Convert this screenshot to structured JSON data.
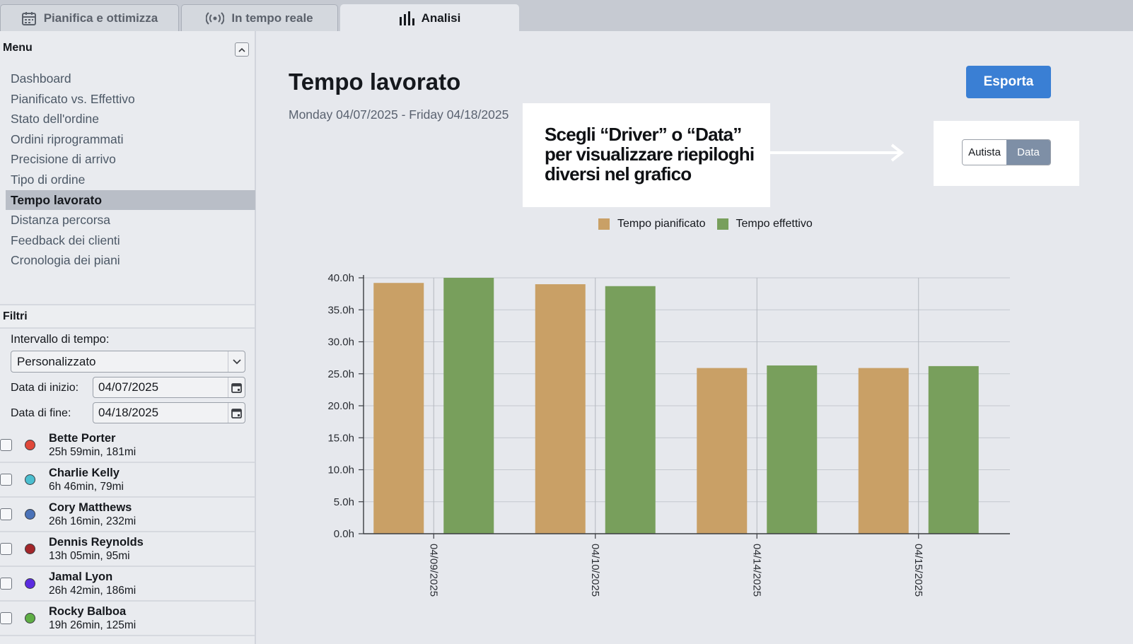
{
  "tabs": [
    {
      "label": "Pianifica e ottimizza",
      "icon": "calendar-icon",
      "active": false
    },
    {
      "label": "In tempo reale",
      "icon": "broadcast-icon",
      "active": false
    },
    {
      "label": "Analisi",
      "icon": "bar-chart-icon",
      "active": true
    }
  ],
  "sidebar": {
    "menu_title": "Menu",
    "items": [
      {
        "label": "Dashboard"
      },
      {
        "label": "Pianificato vs. Effettivo"
      },
      {
        "label": "Stato dell'ordine"
      },
      {
        "label": "Ordini riprogrammati"
      },
      {
        "label": "Precisione di arrivo"
      },
      {
        "label": "Tipo di ordine"
      },
      {
        "label": "Tempo lavorato",
        "active": true
      },
      {
        "label": "Distanza percorsa"
      },
      {
        "label": "Feedback dei clienti"
      },
      {
        "label": "Cronologia dei piani"
      }
    ],
    "filters": {
      "title": "Filtri",
      "range_label": "Intervallo di tempo:",
      "range_value": "Personalizzato",
      "start_label": "Data di inizio:",
      "start_value": "04/07/2025",
      "end_label": "Data di fine:",
      "end_value": "04/18/2025"
    },
    "drivers": [
      {
        "name": "Bette Porter",
        "stats": "25h 59min, 181mi",
        "color": "#e0483a"
      },
      {
        "name": "Charlie Kelly",
        "stats": "6h 46min, 79mi",
        "color": "#4bbecf"
      },
      {
        "name": "Cory Matthews",
        "stats": "26h 16min, 232mi",
        "color": "#4a72b8"
      },
      {
        "name": "Dennis Reynolds",
        "stats": "13h 05min, 95mi",
        "color": "#a3262a"
      },
      {
        "name": "Jamal Lyon",
        "stats": "26h 42min, 186mi",
        "color": "#5b2be0"
      },
      {
        "name": "Rocky Balboa",
        "stats": "19h 26min, 125mi",
        "color": "#5fae45"
      }
    ]
  },
  "main": {
    "title": "Tempo lavorato",
    "date_range": "Monday 04/07/2025 - Friday 04/18/2025",
    "export_label": "Esporta",
    "callout": "Scegli “Driver” o “Data” per visualizzare riepiloghi diversi nel grafico",
    "toggle": {
      "option_a": "Autista",
      "option_b": "Data",
      "selected": "Data"
    }
  },
  "chart_data": {
    "type": "bar",
    "categories": [
      "04/09/2025",
      "04/10/2025",
      "04/14/2025",
      "04/15/2025"
    ],
    "series": [
      {
        "name": "Tempo pianificato",
        "color": "#c9a066",
        "values": [
          39.2,
          39.0,
          25.9,
          25.9
        ]
      },
      {
        "name": "Tempo effettivo",
        "color": "#789f5c",
        "values": [
          40.0,
          38.7,
          26.3,
          26.2
        ]
      }
    ],
    "y_ticks": [
      "0.0h",
      "5.0h",
      "10.0h",
      "15.0h",
      "20.0h",
      "25.0h",
      "30.0h",
      "35.0h",
      "40.0h"
    ],
    "ylim": [
      0,
      40
    ],
    "grid": true,
    "legend": "top-center"
  }
}
